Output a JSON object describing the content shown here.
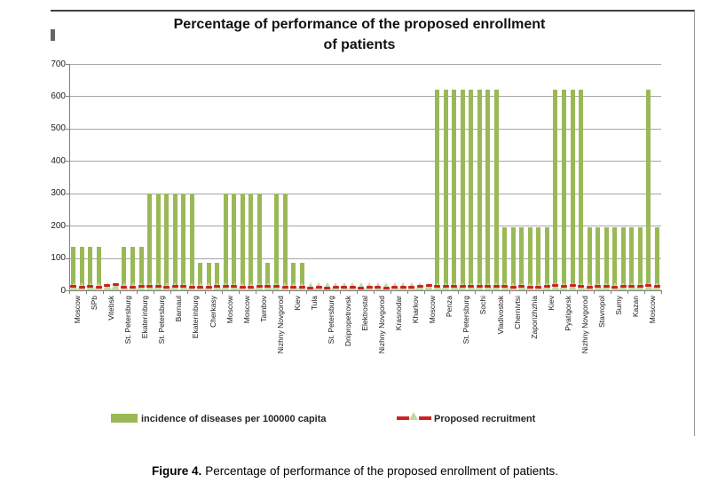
{
  "figure": {
    "caption_bold": "Figure 4.",
    "caption_rest": "Percentage of performance of the proposed enrollment of patients."
  },
  "chart_data": {
    "type": "bar",
    "title": "Percentage of performance of the proposed  enrollment of patients",
    "title_lines": [
      "Percentage of performance of the proposed  enrollment",
      "of patients"
    ],
    "xlabel": "",
    "ylabel": "",
    "ylim": [
      0,
      700
    ],
    "yticks": [
      0,
      100,
      200,
      300,
      400,
      500,
      600,
      700
    ],
    "grid": true,
    "legend_position": "bottom",
    "x_tick_labels": [
      "Moscow",
      "SPb",
      "Vitebsk",
      "St. Petersburg",
      "Ekaterinburg",
      "St. Petersburg",
      "Barnaul",
      "Ekaterinburg",
      "Cherkasy",
      "Moscow",
      "Moscow",
      "Tambov",
      "Nizhny Novgorod",
      "Kiev",
      "Tula",
      "St. Petersburg",
      "Dnipropetrovsk",
      "Elektrostal",
      "Nizhny Novgorod",
      "Krasnodar",
      "Kharkov",
      "Moscow",
      "Penza",
      "St. Petersburg",
      "Sochi",
      "Vladivostok",
      "Chernivtsi",
      "Zaporizhzhia",
      "Kiev",
      "Pyatigorsk",
      "Nizhny Novgorod",
      "Stavropol",
      "Sumy",
      "Kazan",
      "Moscow"
    ],
    "colors": {
      "bar_green": "#9ab956",
      "marker_green": "#c5d79f",
      "line_red": "#cc2222",
      "gridline": "#a6a6a6",
      "axis": "#7f7f7f"
    },
    "series": [
      {
        "name": "incidence of diseases per 100000 capita",
        "type": "bar",
        "color": "#9ab956",
        "values": [
          135,
          135,
          135,
          135,
          15,
          15,
          135,
          135,
          135,
          300,
          300,
          300,
          300,
          300,
          300,
          85,
          85,
          85,
          300,
          300,
          300,
          300,
          300,
          85,
          300,
          300,
          85,
          85,
          10,
          8,
          12,
          9,
          8,
          10,
          9,
          11,
          8,
          10,
          12,
          9,
          10,
          9,
          15,
          620,
          620,
          620,
          620,
          620,
          620,
          620,
          620,
          195,
          195,
          195,
          195,
          195,
          195,
          620,
          620,
          620,
          620,
          195,
          195,
          195,
          195,
          195,
          195,
          195,
          620,
          195
        ]
      },
      {
        "name": "Proposed recruitment",
        "type": "line",
        "line_style": "dashed",
        "color": "#cc2222",
        "marker": "triangle",
        "marker_color": "#c5d79f",
        "values": [
          12,
          10,
          12,
          9,
          16,
          18,
          11,
          10,
          12,
          13,
          12,
          11,
          13,
          12,
          10,
          11,
          10,
          12,
          13,
          12,
          11,
          10,
          12,
          13,
          12,
          10,
          11,
          9,
          8,
          10,
          8,
          9,
          10,
          9,
          8,
          10,
          9,
          8,
          10,
          11,
          10,
          12,
          14,
          13,
          12,
          13,
          12,
          12,
          13,
          12,
          13,
          12,
          11,
          12,
          10,
          11,
          12,
          14,
          13,
          15,
          12,
          11,
          13,
          12,
          11,
          12,
          13,
          12,
          14,
          12
        ]
      }
    ]
  }
}
